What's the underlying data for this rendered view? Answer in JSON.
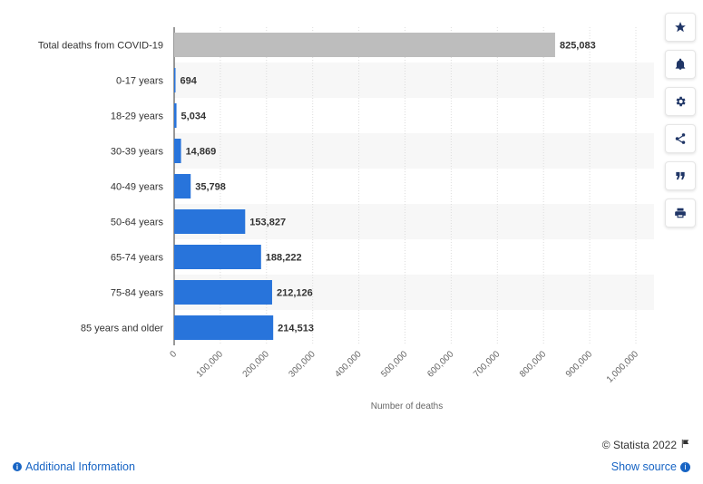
{
  "chart_data": {
    "type": "bar",
    "orientation": "horizontal",
    "categories": [
      "Total deaths from COVID-19",
      "0-17 years",
      "18-29 years",
      "30-39 years",
      "40-49 years",
      "50-64 years",
      "65-74 years",
      "75-84 years",
      "85 years and older"
    ],
    "values": [
      825083,
      694,
      5034,
      14869,
      35798,
      153827,
      188222,
      212126,
      214513
    ],
    "value_labels": [
      "825,083",
      "694",
      "5,034",
      "14,869",
      "35,798",
      "153,827",
      "188,222",
      "212,126",
      "214,513"
    ],
    "xlabel": "Number of deaths",
    "xlim": [
      0,
      1000000
    ],
    "ticks": [
      "0",
      "100,000",
      "200,000",
      "300,000",
      "400,000",
      "500,000",
      "600,000",
      "700,000",
      "800,000",
      "900,000",
      "1,000,000"
    ],
    "colors": {
      "highlight": "#bdbdbd",
      "bars": "#2874db"
    },
    "grid": true
  },
  "toolbar": {
    "icons": [
      "star-icon",
      "bell-icon",
      "gear-icon",
      "share-icon",
      "quote-icon",
      "print-icon"
    ]
  },
  "footer": {
    "copyright": "© Statista 2022",
    "additional_info": "Additional Information",
    "show_source": "Show source"
  }
}
